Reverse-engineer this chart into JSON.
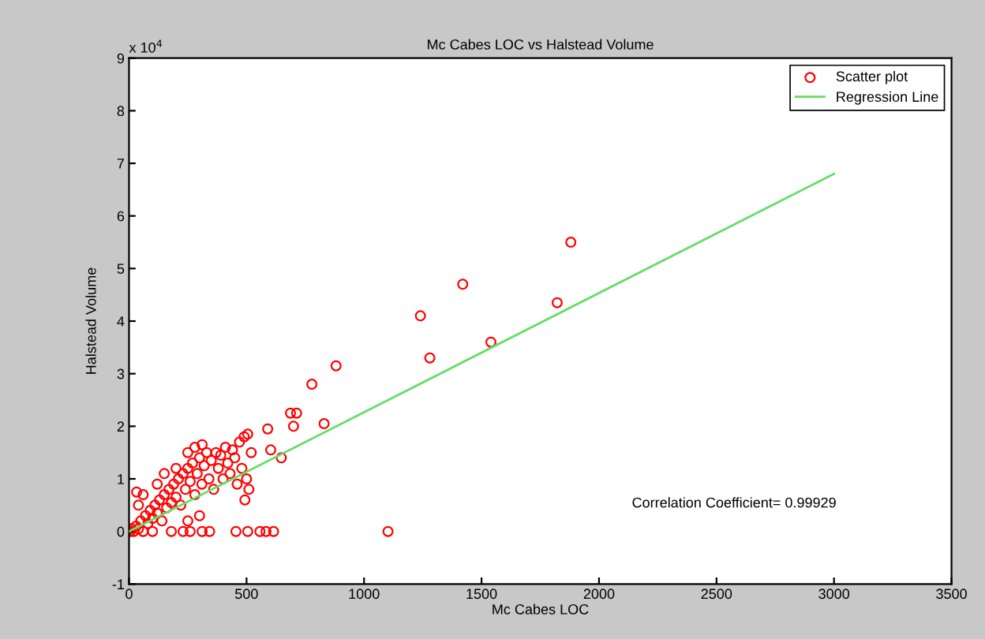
{
  "chart_data": {
    "type": "scatter",
    "title": "Mc Cabes LOC vs Halstead Volume",
    "xlabel": "Mc Cabes LOC",
    "ylabel": "Halstead Volume",
    "xlim": [
      0,
      3500
    ],
    "xticks": [
      0,
      500,
      1000,
      1500,
      2000,
      2500,
      3000,
      3500
    ],
    "ylim": [
      -1,
      9
    ],
    "yticks": [
      -1,
      0,
      1,
      2,
      3,
      4,
      5,
      6,
      7,
      8,
      9
    ],
    "legend": "top right",
    "grid": false,
    "annotations": [
      "x 10$^{4}$",
      "Correlation Coefficient= 0.99929"
    ],
    "series": [
      {
        "name": "Scatter plot",
        "marker": "circle",
        "color": "#ff0000",
        "x": [
          5,
          10,
          20,
          30,
          40,
          50,
          60,
          70,
          80,
          90,
          100,
          100,
          110,
          120,
          130,
          140,
          150,
          160,
          170,
          180,
          180,
          190,
          200,
          210,
          220,
          230,
          240,
          250,
          260,
          270,
          280,
          290,
          300,
          310,
          320,
          330,
          340,
          350,
          360,
          370,
          380,
          390,
          400,
          410,
          420,
          430,
          440,
          450,
          460,
          470,
          480,
          490,
          500,
          510,
          520,
          40,
          60,
          120,
          150,
          200,
          250,
          280,
          230,
          260,
          311,
          343,
          455,
          505,
          557,
          583,
          615,
          300,
          250,
          1880,
          1822,
          1420,
          1240,
          1280,
          1540,
          881,
          778,
          687,
          713,
          700,
          830,
          1102,
          590,
          505,
          311,
          32,
          648,
          603,
          493
        ],
        "values": [
          0,
          0.05,
          0,
          0.1,
          0.05,
          0.2,
          0,
          0.3,
          0.15,
          0.4,
          0,
          0.25,
          0.5,
          0.35,
          0.6,
          0.2,
          0.7,
          0.45,
          0.8,
          0,
          0.55,
          0.9,
          0.65,
          1.0,
          0.5,
          1.1,
          0.8,
          1.2,
          0.95,
          1.3,
          0.7,
          1.1,
          1.4,
          0.9,
          1.25,
          1.5,
          1.0,
          1.35,
          0.8,
          1.5,
          1.2,
          1.45,
          1.0,
          1.6,
          1.3,
          1.1,
          1.55,
          1.4,
          0.9,
          1.7,
          1.2,
          1.8,
          1.0,
          0.8,
          1.5,
          0.5,
          0.7,
          0.9,
          1.1,
          1.2,
          1.5,
          1.6,
          0,
          0,
          0,
          0,
          0,
          0,
          0,
          0,
          0,
          0.3,
          0.2,
          5.5,
          4.35,
          4.7,
          4.1,
          3.3,
          3.6,
          3.15,
          2.8,
          2.25,
          2.25,
          2.0,
          2.05,
          0,
          1.95,
          1.85,
          1.65,
          0.75,
          1.4,
          1.55,
          0.6
        ]
      },
      {
        "name": "Regression Line",
        "type": "line",
        "marker": "none",
        "line_style": "solid",
        "color": "#66dd66",
        "x": [
          0,
          3000
        ],
        "values": [
          0,
          6.8
        ]
      }
    ]
  }
}
